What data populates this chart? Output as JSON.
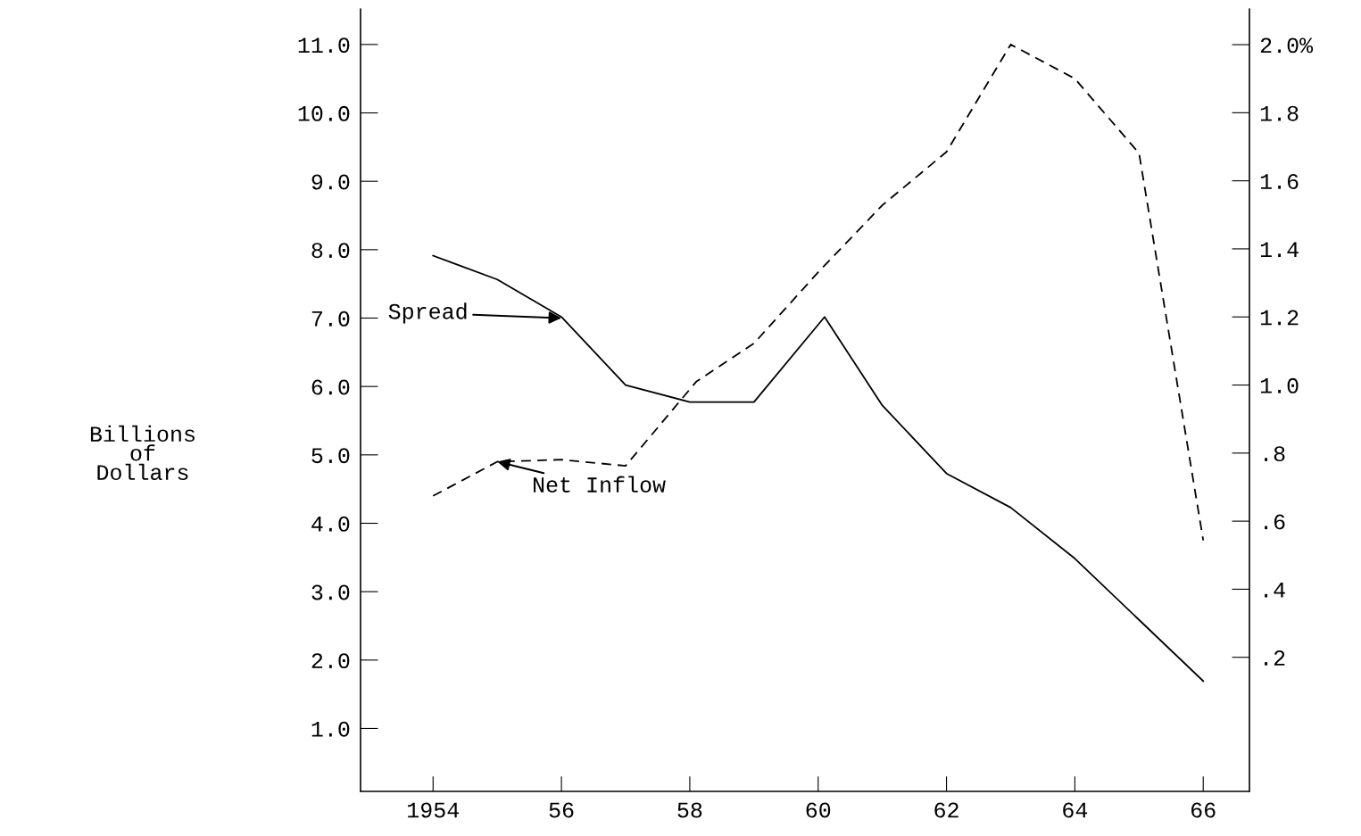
{
  "chart_data": {
    "type": "line",
    "ylabel": "Billions\nof\nDollars",
    "series": [
      {
        "color": "#000000",
        "line_style": "dashed",
        "x": [
          1954,
          1955,
          1956,
          1957,
          1958.1,
          1959,
          1960,
          1961,
          1962,
          1963,
          1964,
          1965,
          1966
        ],
        "values": [
          4.4,
          4.9,
          4.93,
          4.84,
          6.07,
          6.63,
          7.67,
          8.65,
          9.43,
          11.0,
          10.5,
          9.41,
          3.75
        ]
      },
      {
        "color": "#000000",
        "line_style": "solid",
        "axis": "y2",
        "x": [
          1954,
          1955,
          1956,
          1957,
          1958,
          1959,
          1960.1,
          1961,
          1962,
          1963,
          1964,
          1965,
          1966
        ],
        "values": [
          1.38,
          1.31,
          1.2,
          1.0,
          0.95,
          0.95,
          1.2,
          0.94,
          0.74,
          0.64,
          0.49,
          0.31,
          0.13
        ]
      }
    ],
    "annotations": [
      {
        "text": "Net Inflow",
        "x": 1955,
        "y": 4.9
      },
      {
        "text": "Spread",
        "x": 1956,
        "y": 7.0
      }
    ],
    "xlim": [
      1952.87,
      1966.72
    ],
    "xticks": [
      {
        "value": 1954,
        "label": "1954"
      },
      {
        "value": 1956,
        "label": "56"
      },
      {
        "value": 1958,
        "label": "58"
      },
      {
        "value": 1960,
        "label": "60"
      },
      {
        "value": 1962,
        "label": "62"
      },
      {
        "value": 1964,
        "label": "64"
      },
      {
        "value": 1966,
        "label": "66"
      }
    ],
    "ylim": [
      0.08,
      11.52
    ],
    "yticks": [
      {
        "value": 1,
        "label": "1.0"
      },
      {
        "value": 2,
        "label": "2.0"
      },
      {
        "value": 3,
        "label": "3.0"
      },
      {
        "value": 4,
        "label": "4.0"
      },
      {
        "value": 5,
        "label": "5.0"
      },
      {
        "value": 6,
        "label": "6.0"
      },
      {
        "value": 7,
        "label": "7.0"
      },
      {
        "value": 8,
        "label": "8.0"
      },
      {
        "value": 9,
        "label": "9.0"
      },
      {
        "value": 10,
        "label": "10.0"
      },
      {
        "value": 11,
        "label": "11.0"
      }
    ],
    "y2lim": [
      -0.194,
      2.105
    ],
    "y2ticks": [
      {
        "value": 0.2,
        "label": ".2"
      },
      {
        "value": 0.4,
        "label": ".4"
      },
      {
        "value": 0.6,
        "label": ".6"
      },
      {
        "value": 0.8,
        "label": ".8"
      },
      {
        "value": 1.0,
        "label": "1.0"
      },
      {
        "value": 1.2,
        "label": "1.2"
      },
      {
        "value": 1.4,
        "label": "1.4"
      },
      {
        "value": 1.6,
        "label": "1.6"
      },
      {
        "value": 1.8,
        "label": "1.8"
      },
      {
        "value": 2.0,
        "label": "2.0%"
      }
    ],
    "grid": false,
    "legend": false
  }
}
